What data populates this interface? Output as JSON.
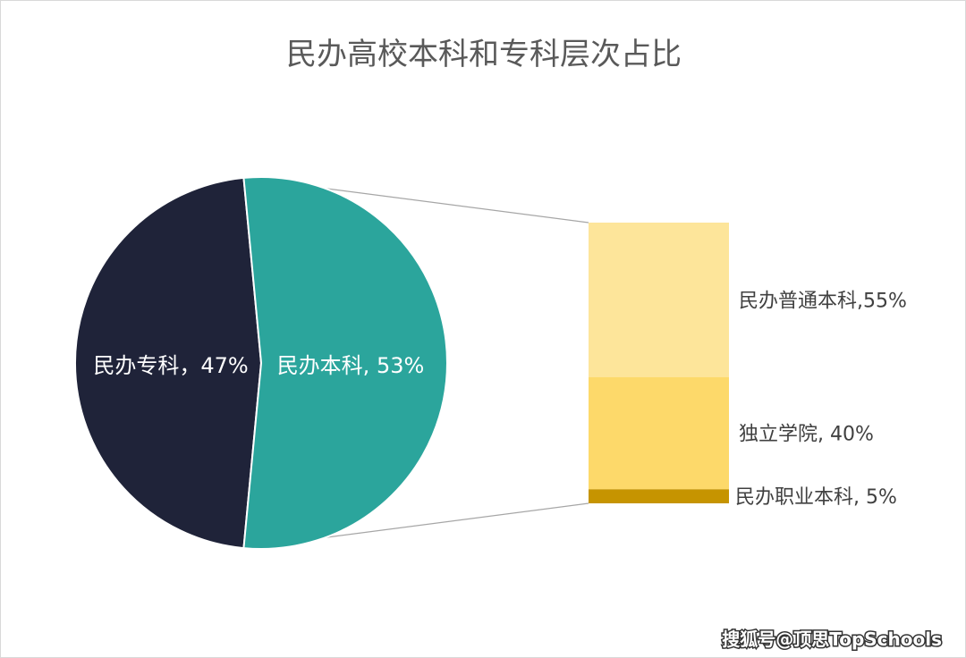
{
  "chart_data": {
    "type": "pie",
    "subtype": "bar-of-pie",
    "title": "民办高校本科和专科层次占比",
    "pie": {
      "slices": [
        {
          "name": "民办专科",
          "value": 47,
          "label": "民办专科，47%",
          "color": "#1f2339"
        },
        {
          "name": "民办本科",
          "value": 53,
          "label": "民办本科, 53%",
          "color": "#2ba59c"
        }
      ],
      "exploded_slice": "民办本科"
    },
    "bar": {
      "segments": [
        {
          "name": "民办普通本科",
          "value": 55,
          "label": "民办普通本科,55%",
          "color": "#fde59a"
        },
        {
          "name": "独立学院",
          "value": 40,
          "label": "独立学院, 40%",
          "color": "#fdd96a"
        },
        {
          "name": "民办职业本科",
          "value": 5,
          "label": "民办职业本科, 5%",
          "color": "#c69400"
        }
      ]
    },
    "connector_color": "#a6a6a6"
  },
  "watermark": "搜狐号@顶思TopSchools"
}
